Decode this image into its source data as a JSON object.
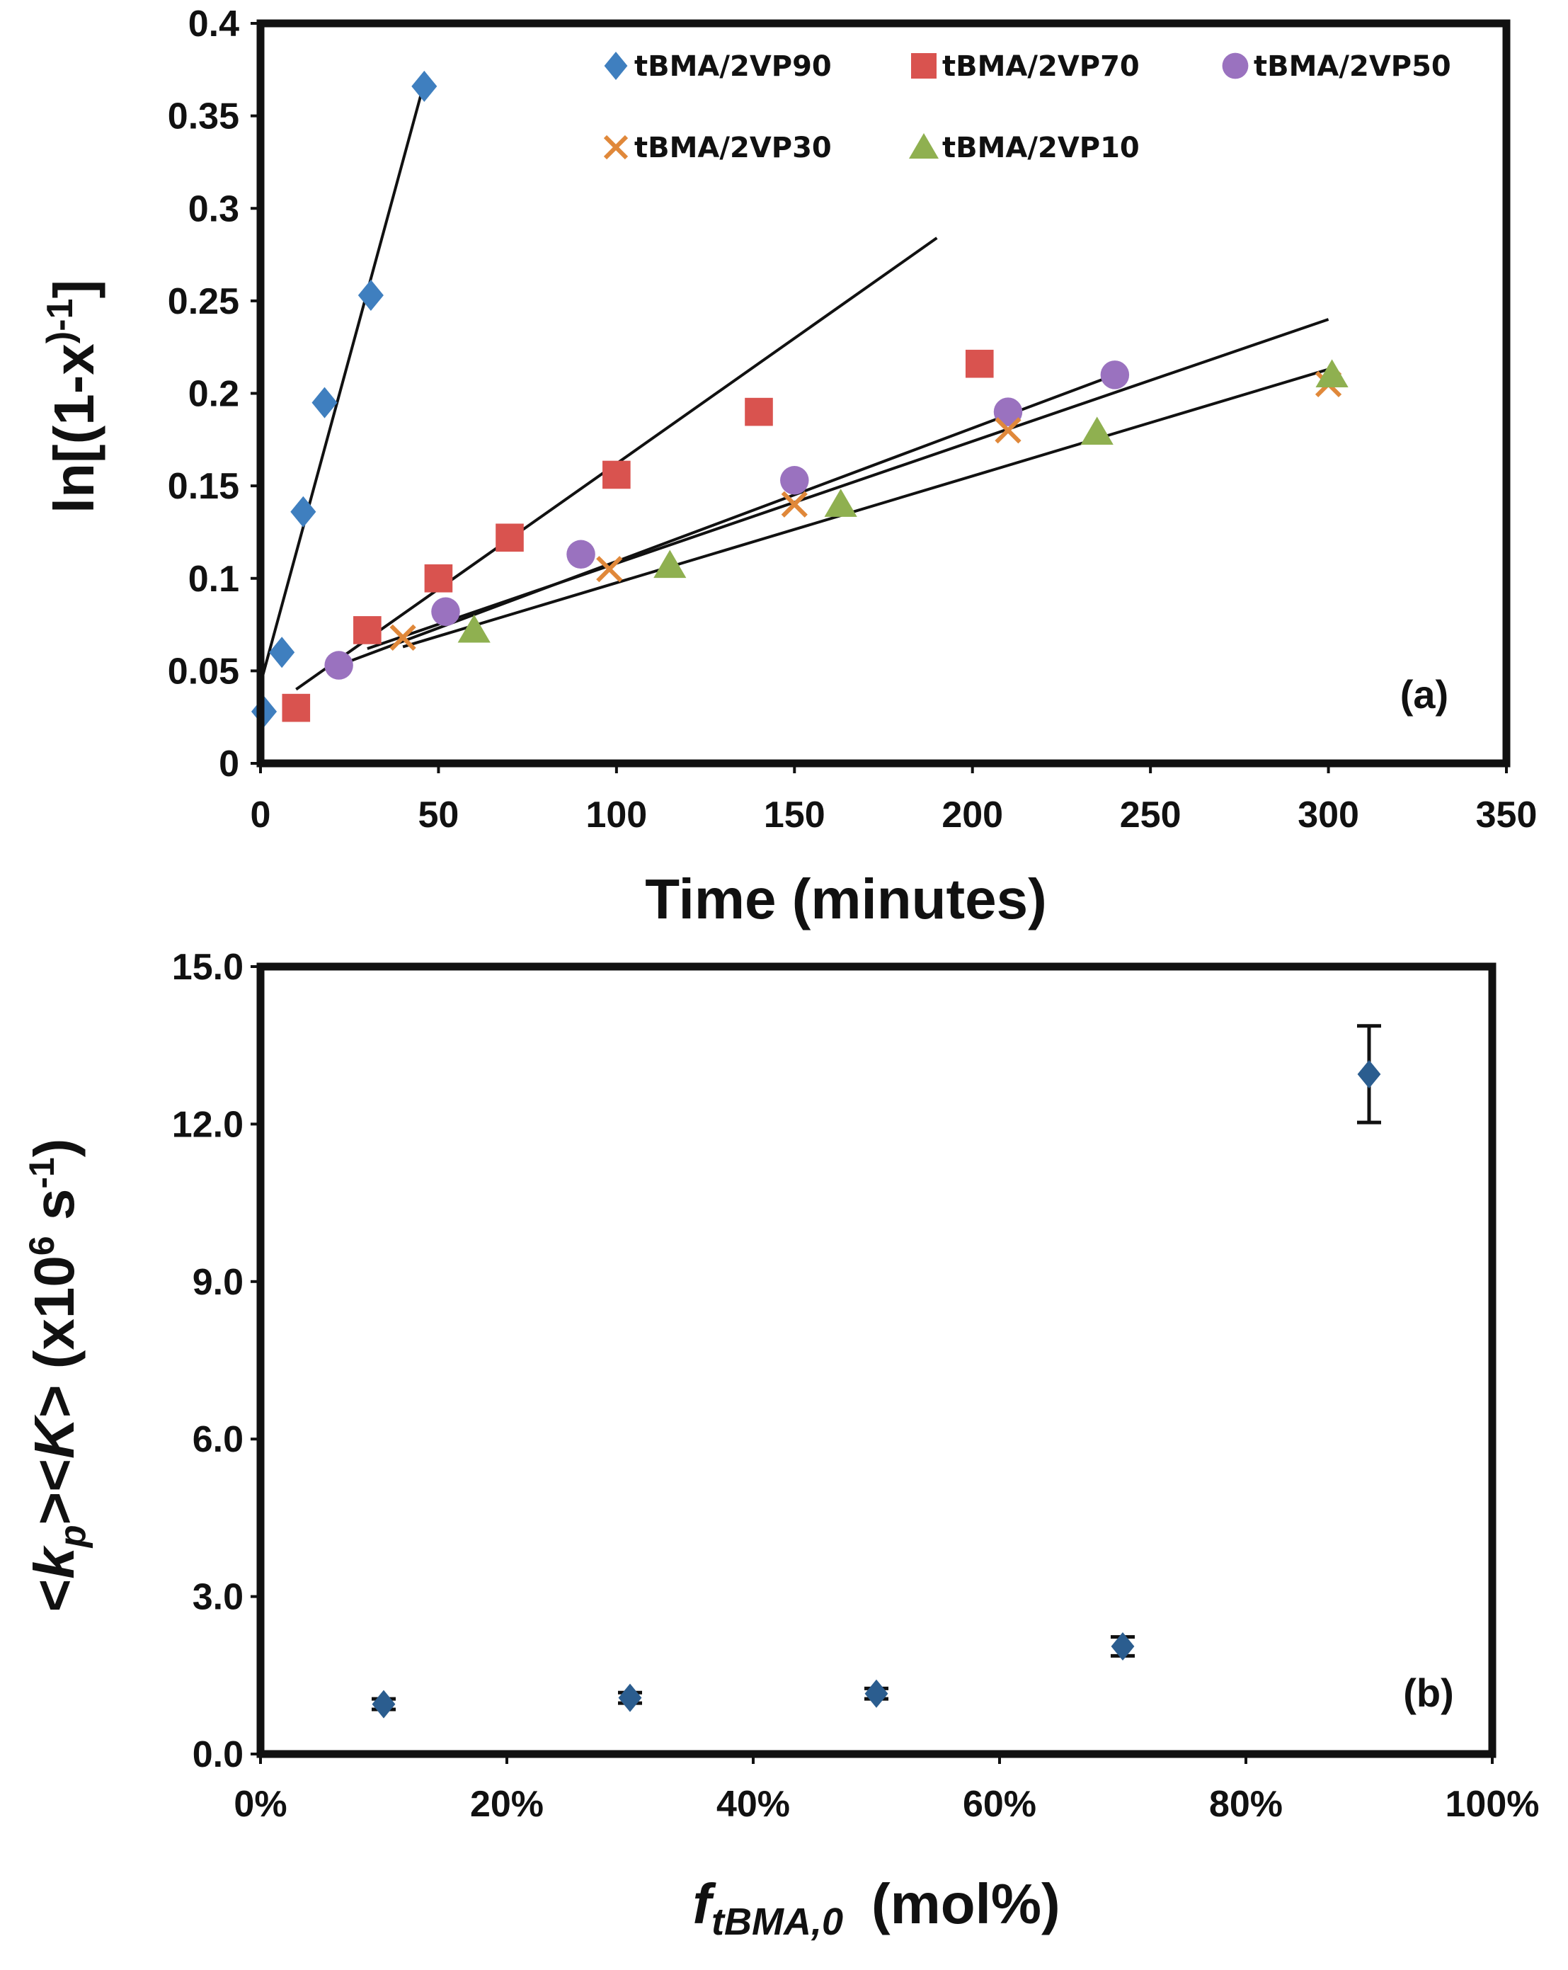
{
  "chart_data": [
    {
      "id": "a",
      "type": "scatter",
      "panel_label": "(a)",
      "xlabel": "Time (minutes)",
      "ylabel": {
        "main": "ln[(1-x",
        "sup1": ")-1",
        "end": "]"
      },
      "xlim": [
        0,
        350
      ],
      "ylim": [
        0,
        0.4
      ],
      "xticks": [
        0,
        50,
        100,
        150,
        200,
        250,
        300,
        350
      ],
      "yticks": [
        0,
        0.05,
        0.1,
        0.15,
        0.2,
        0.25,
        0.3,
        0.35,
        0.4
      ],
      "xtick_labels": [
        "0",
        "50",
        "100",
        "150",
        "200",
        "250",
        "300",
        "350"
      ],
      "ytick_labels": [
        "0",
        "0.05",
        "0.1",
        "0.15",
        "0.2",
        "0.25",
        "0.3",
        "0.35",
        "0.4"
      ],
      "series": [
        {
          "name": "tBMA/2VP90",
          "marker": "diamond",
          "color": "#3f7fbf",
          "x": [
            1,
            6,
            12,
            18,
            31,
            46
          ],
          "y": [
            0.028,
            0.06,
            0.136,
            0.195,
            0.253,
            0.366
          ],
          "fit": {
            "x": [
              0,
              46
            ],
            "y": [
              0.043,
              0.368
            ]
          }
        },
        {
          "name": "tBMA/2VP70",
          "marker": "square",
          "color": "#d9534f",
          "x": [
            10,
            30,
            50,
            70,
            100,
            140,
            202
          ],
          "y": [
            0.03,
            0.072,
            0.1,
            0.122,
            0.156,
            0.19,
            0.216
          ],
          "fit": {
            "x": [
              10,
              190
            ],
            "y": [
              0.04,
              0.284
            ]
          }
        },
        {
          "name": "tBMA/2VP50",
          "marker": "circle",
          "color": "#9a72bf",
          "x": [
            22,
            52,
            90,
            150,
            210,
            240
          ],
          "y": [
            0.053,
            0.082,
            0.113,
            0.153,
            0.19,
            0.21
          ],
          "fit": {
            "x": [
              22,
              240
            ],
            "y": [
              0.053,
              0.21
            ]
          }
        },
        {
          "name": "tBMA/2VP30",
          "marker": "x",
          "color": "#e0883a",
          "x": [
            40,
            98,
            150,
            210,
            300
          ],
          "y": [
            0.068,
            0.105,
            0.14,
            0.18,
            0.205
          ],
          "fit": {
            "x": [
              30,
              300
            ],
            "y": [
              0.062,
              0.24
            ]
          }
        },
        {
          "name": "tBMA/2VP10",
          "marker": "triangle",
          "color": "#8fb050",
          "x": [
            60,
            115,
            163,
            235,
            301
          ],
          "y": [
            0.072,
            0.107,
            0.14,
            0.179,
            0.21
          ],
          "fit": {
            "x": [
              40,
              300
            ],
            "y": [
              0.063,
              0.213
            ]
          }
        }
      ]
    },
    {
      "id": "b",
      "type": "scatter",
      "panel_label": "(b)",
      "xlabel": {
        "italic": "f",
        "sub": "tBMA,0",
        "rest": "(mol%)"
      },
      "ylabel": {
        "pre": "<",
        "k": "k",
        "p": "p",
        "mid": "><",
        "K": "K",
        "post": "> (x10",
        "exp6": "6",
        "unit": " s",
        "expm1": "-1",
        "close": ")"
      },
      "xlim": [
        0,
        100
      ],
      "ylim": [
        0,
        15
      ],
      "xticks": [
        0,
        20,
        40,
        60,
        80,
        100
      ],
      "yticks": [
        0,
        3,
        6,
        9,
        12,
        15
      ],
      "xtick_labels": [
        "0%",
        "20%",
        "40%",
        "60%",
        "80%",
        "100%"
      ],
      "ytick_labels": [
        "0.0",
        "3.0",
        "6.0",
        "9.0",
        "12.0",
        "15.0"
      ],
      "series": [
        {
          "name": "kpK",
          "marker": "diamond",
          "color": "#2b5d8f",
          "x": [
            10,
            30,
            50,
            70,
            90
          ],
          "y": [
            0.95,
            1.07,
            1.15,
            2.05,
            12.95
          ],
          "err": [
            0.1,
            0.1,
            0.1,
            0.18,
            0.92
          ]
        }
      ]
    }
  ]
}
